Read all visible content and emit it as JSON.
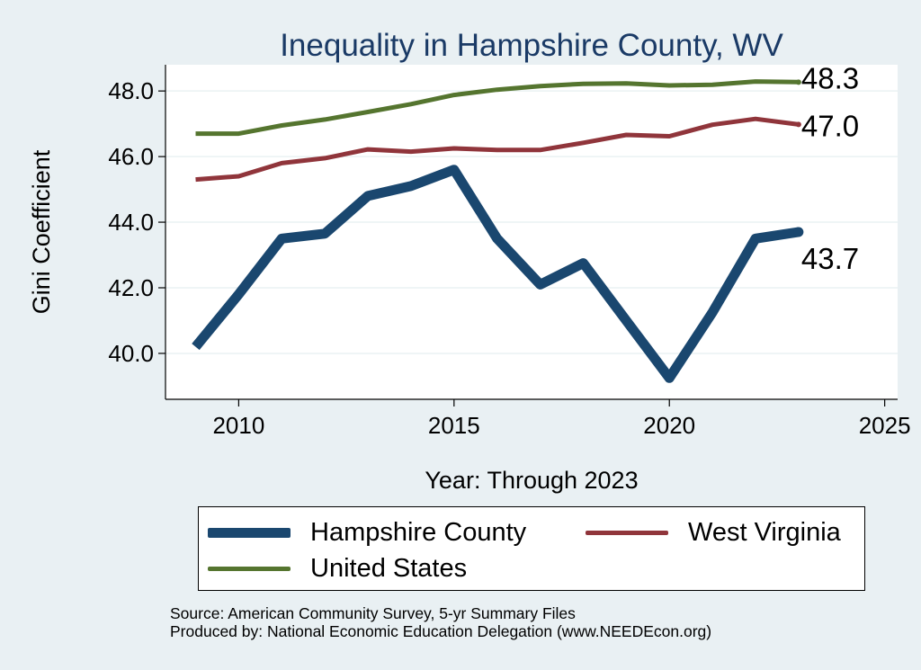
{
  "chart_data": {
    "type": "line",
    "title": "Inequality in Hampshire County, WV",
    "xlabel": "Year: Through 2023",
    "ylabel": "Gini Coefficient",
    "xlim": [
      2008.3,
      2025.3
    ],
    "ylim": [
      38.6,
      48.8
    ],
    "x_ticks": [
      "2010",
      "2015",
      "2020",
      "2025"
    ],
    "y_ticks": [
      "40.0",
      "42.0",
      "44.0",
      "46.0",
      "48.0"
    ],
    "grid": true,
    "x": [
      2009,
      2010,
      2011,
      2012,
      2013,
      2014,
      2015,
      2016,
      2017,
      2018,
      2019,
      2020,
      2021,
      2022,
      2023
    ],
    "series": [
      {
        "name": "Hampshire County",
        "color": "#1a476f",
        "values": [
          40.2,
          41.8,
          43.5,
          43.65,
          44.8,
          45.1,
          45.6,
          43.5,
          42.1,
          42.75,
          41.0,
          39.25,
          41.25,
          43.5,
          43.7
        ],
        "end_label": "43.7"
      },
      {
        "name": "West Virginia",
        "color": "#90353b",
        "values": [
          45.3,
          45.4,
          45.8,
          45.95,
          46.22,
          46.15,
          46.25,
          46.2,
          46.2,
          46.42,
          46.66,
          46.62,
          46.97,
          47.15,
          46.98
        ],
        "end_label": "47.0"
      },
      {
        "name": "United States",
        "color": "#55752f",
        "values": [
          46.7,
          46.7,
          46.95,
          47.13,
          47.36,
          47.6,
          47.88,
          48.04,
          48.15,
          48.22,
          48.23,
          48.17,
          48.19,
          48.29,
          48.27
        ],
        "end_label": "48.3"
      }
    ],
    "legend": [
      {
        "name": "Hampshire County",
        "color": "#1a476f"
      },
      {
        "name": "West Virginia",
        "color": "#90353b"
      },
      {
        "name": "United States",
        "color": "#55752f"
      }
    ],
    "legend_position": "bottom"
  },
  "source_lines": [
    "Source: American Community Survey, 5-yr Summary Files",
    "Produced by: National Economic Education Delegation (www.NEEDEcon.org)"
  ]
}
